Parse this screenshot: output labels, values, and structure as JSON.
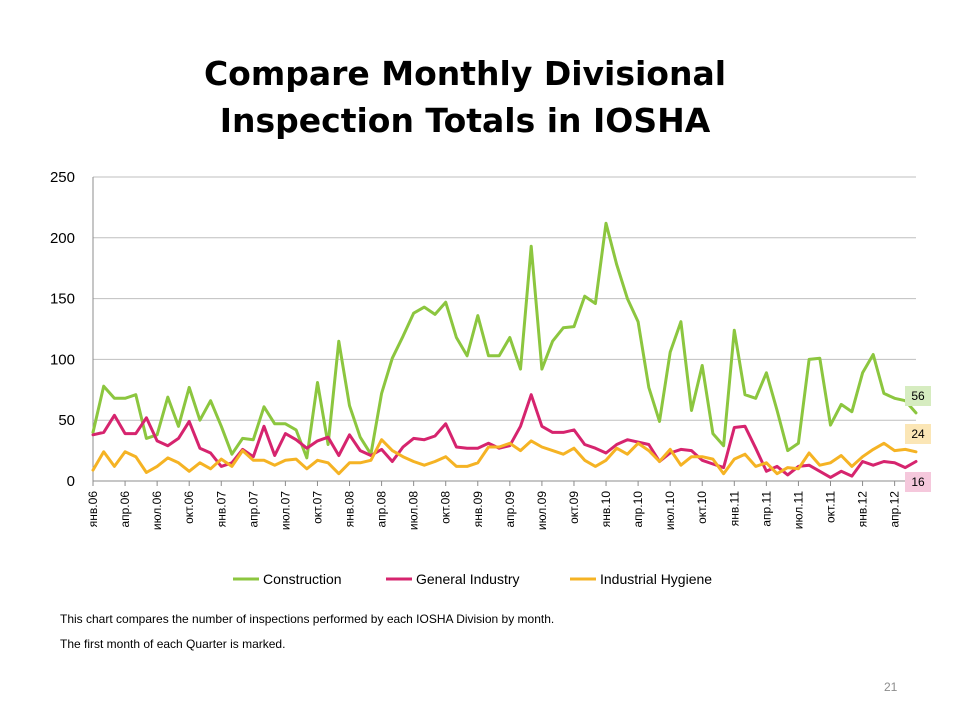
{
  "title_lines": [
    "Compare Monthly Divisional",
    "Inspection Totals in IOSHA"
  ],
  "notes": [
    "This chart compares the number of inspections performed by each IOSHA Division by month.",
    "The first month of each Quarter is marked."
  ],
  "page_number": "21",
  "chart_data": {
    "type": "line",
    "title": "Compare Monthly Divisional Inspection Totals in IOSHA",
    "xlabel": "",
    "ylabel": "",
    "ylim": [
      0,
      250
    ],
    "yticks": [
      "0",
      "50",
      "100",
      "150",
      "200",
      "250"
    ],
    "grid": "horizontal",
    "legend": "bottom",
    "x_tick_labels": [
      "янв.06",
      "апр.06",
      "июл.06",
      "окт.06",
      "янв.07",
      "апр.07",
      "июл.07",
      "окт.07",
      "янв.08",
      "апр.08",
      "июл.08",
      "окт.08",
      "янв.09",
      "апр.09",
      "июл.09",
      "окт.09",
      "янв.10",
      "апр.10",
      "июл.10",
      "окт.10",
      "янв.11",
      "апр.11",
      "июл.11",
      "окт.11",
      "янв.12",
      "апр.12"
    ],
    "series": [
      {
        "name": "Construction",
        "color": "#8cc63f",
        "values": [
          40,
          78,
          68,
          68,
          71,
          35,
          38,
          69,
          45,
          77,
          50,
          66,
          45,
          22,
          35,
          34,
          61,
          47,
          47,
          42,
          19,
          81,
          30,
          115,
          62,
          36,
          22,
          72,
          101,
          119,
          138,
          143,
          137,
          147,
          118,
          103,
          136,
          103,
          103,
          118,
          92,
          193,
          92,
          115,
          126,
          127,
          152,
          146,
          212,
          178,
          150,
          131,
          77,
          49,
          106,
          131,
          58,
          95,
          39,
          29,
          124,
          71,
          68,
          89,
          58,
          25,
          31,
          100,
          101,
          46,
          63,
          57,
          89,
          104,
          72,
          68,
          66,
          56
        ],
        "end_label": "56",
        "end_bg": "#d6ecc0"
      },
      {
        "name": "General Industry",
        "color": "#d6246e",
        "values": [
          38,
          40,
          54,
          39,
          39,
          52,
          33,
          29,
          35,
          49,
          27,
          23,
          12,
          15,
          26,
          20,
          45,
          21,
          39,
          34,
          27,
          33,
          36,
          21,
          38,
          25,
          21,
          26,
          16,
          28,
          35,
          34,
          37,
          47,
          28,
          27,
          27,
          31,
          27,
          29,
          45,
          71,
          45,
          40,
          40,
          42,
          30,
          27,
          23,
          30,
          34,
          32,
          30,
          16,
          23,
          26,
          25,
          17,
          14,
          11,
          44,
          45,
          27,
          8,
          12,
          5,
          12,
          13,
          8,
          3,
          8,
          4,
          16,
          13,
          16,
          15,
          11,
          16
        ],
        "end_label": "16",
        "end_bg": "#f5c8dc"
      },
      {
        "name": "Industrial Hygiene",
        "color": "#f5b324",
        "values": [
          9,
          24,
          12,
          24,
          20,
          7,
          12,
          19,
          15,
          8,
          15,
          10,
          18,
          12,
          25,
          17,
          17,
          13,
          17,
          18,
          10,
          17,
          15,
          6,
          15,
          15,
          17,
          34,
          25,
          20,
          16,
          13,
          16,
          20,
          12,
          12,
          15,
          28,
          28,
          31,
          25,
          33,
          28,
          25,
          22,
          27,
          17,
          12,
          17,
          27,
          22,
          31,
          25,
          16,
          26,
          13,
          20,
          20,
          18,
          6,
          18,
          22,
          12,
          15,
          6,
          11,
          10,
          23,
          13,
          15,
          21,
          12,
          20,
          26,
          31,
          25,
          26,
          24
        ],
        "end_label": "24",
        "end_bg": "#fbe6b6"
      }
    ]
  }
}
